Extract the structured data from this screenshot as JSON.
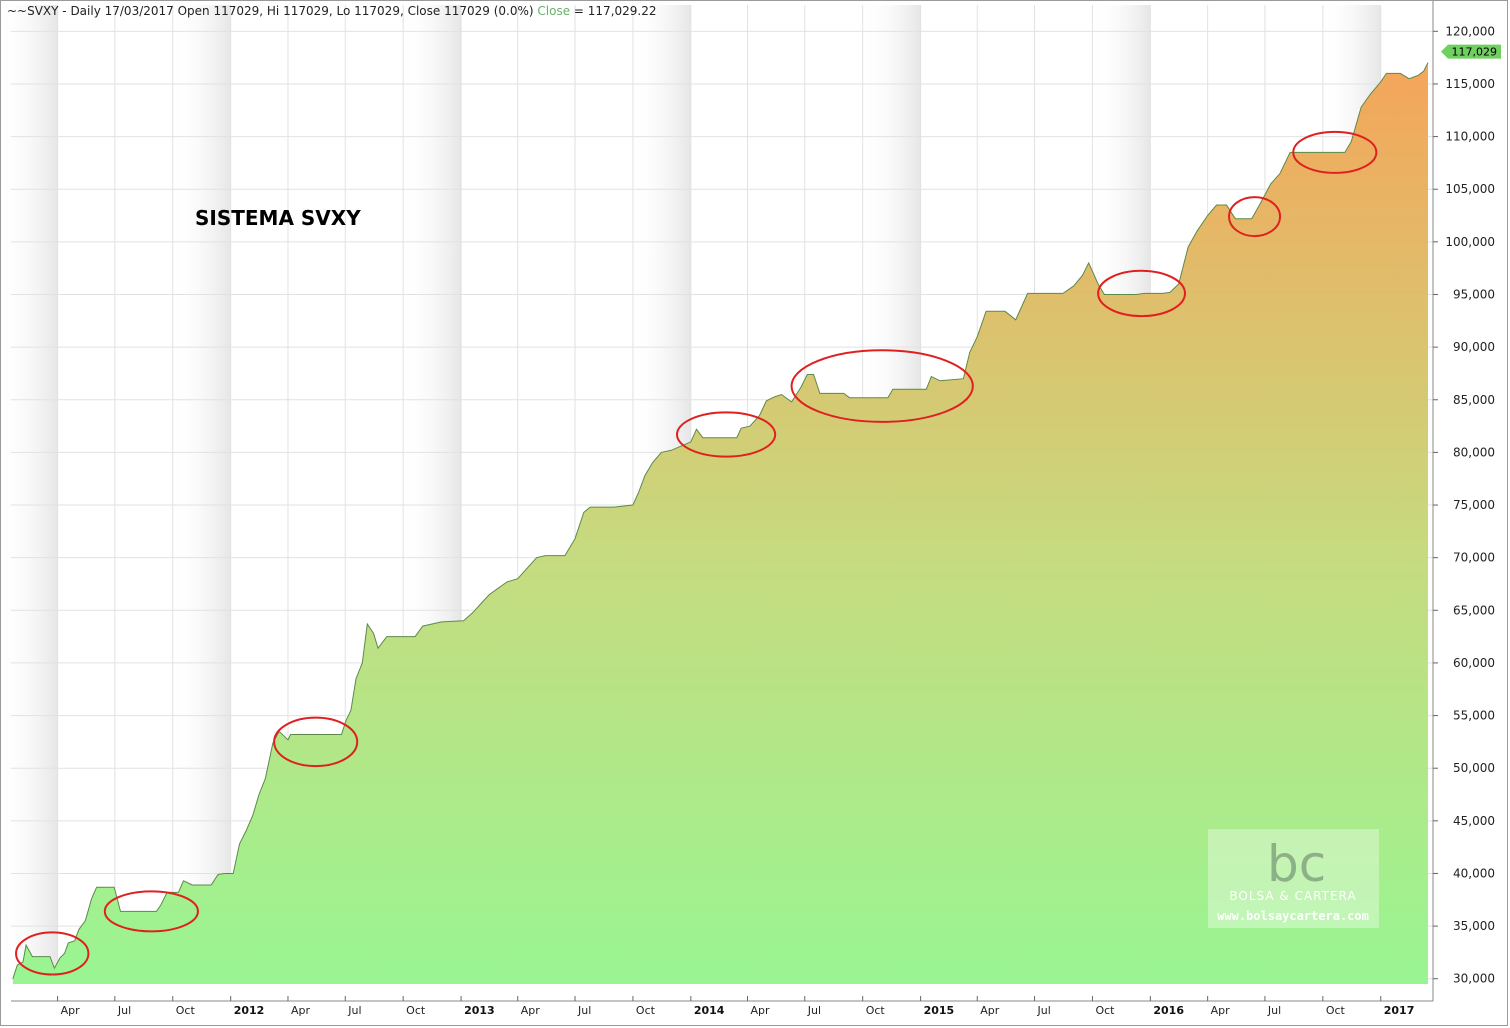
{
  "header": {
    "prefix": "~~SVXY - Daily 17/03/2017 Open 117029, Hi 117029, Lo 117029, Close 117029 (0.0%)",
    "close_label": "Close",
    "close_value": "= 117,029.22"
  },
  "last_value_tag": "117,029",
  "watermark": {
    "logo": "bc",
    "name": "BOLSA & CARTERA",
    "url": "www.bolsaycartera.com"
  },
  "colors": {
    "fill_top": "#f5a55a",
    "fill_mid": "#c5dc80",
    "fill_bottom": "#99f592",
    "line": "#5c8a4a",
    "ellipse": "#e02020",
    "tag_bg": "#6fcf5f",
    "shade": "#ececec"
  },
  "chart_data": {
    "type": "area",
    "title": "SISTEMA SVXY",
    "xlabel": "",
    "ylabel": "",
    "ylim": [
      29500,
      122500
    ],
    "xlim": [
      "2011-01-17",
      "2017-03-25"
    ],
    "y_scale_position": "right",
    "grid": true,
    "y_ticks": [
      30000,
      35000,
      40000,
      45000,
      50000,
      55000,
      60000,
      65000,
      70000,
      75000,
      80000,
      85000,
      90000,
      95000,
      100000,
      105000,
      110000,
      115000,
      120000
    ],
    "y_tick_labels": [
      "30,000",
      "35,000",
      "40,000",
      "45,000",
      "50,000",
      "55,000",
      "60,000",
      "65,000",
      "70,000",
      "75,000",
      "80,000",
      "85,000",
      "90,000",
      "95,000",
      "100,000",
      "105,000",
      "110,000",
      "115,000",
      "120,000"
    ],
    "x_ticks": [
      {
        "date": "2011-04-01",
        "label": "Apr",
        "year": false
      },
      {
        "date": "2011-07-01",
        "label": "Jul",
        "year": false
      },
      {
        "date": "2011-10-01",
        "label": "Oct",
        "year": false
      },
      {
        "date": "2012-01-01",
        "label": "2012",
        "year": true
      },
      {
        "date": "2012-04-01",
        "label": "Apr",
        "year": false
      },
      {
        "date": "2012-07-01",
        "label": "Jul",
        "year": false
      },
      {
        "date": "2012-10-01",
        "label": "Oct",
        "year": false
      },
      {
        "date": "2013-01-01",
        "label": "2013",
        "year": true
      },
      {
        "date": "2013-04-01",
        "label": "Apr",
        "year": false
      },
      {
        "date": "2013-07-01",
        "label": "Jul",
        "year": false
      },
      {
        "date": "2013-10-01",
        "label": "Oct",
        "year": false
      },
      {
        "date": "2014-01-01",
        "label": "2014",
        "year": true
      },
      {
        "date": "2014-04-01",
        "label": "Apr",
        "year": false
      },
      {
        "date": "2014-07-01",
        "label": "Jul",
        "year": false
      },
      {
        "date": "2014-10-01",
        "label": "Oct",
        "year": false
      },
      {
        "date": "2015-01-01",
        "label": "2015",
        "year": true
      },
      {
        "date": "2015-04-01",
        "label": "Apr",
        "year": false
      },
      {
        "date": "2015-07-01",
        "label": "Jul",
        "year": false
      },
      {
        "date": "2015-10-01",
        "label": "Oct",
        "year": false
      },
      {
        "date": "2016-01-01",
        "label": "2016",
        "year": true
      },
      {
        "date": "2016-04-01",
        "label": "Apr",
        "year": false
      },
      {
        "date": "2016-07-01",
        "label": "Jul",
        "year": false
      },
      {
        "date": "2016-10-01",
        "label": "Oct",
        "year": false
      },
      {
        "date": "2017-01-01",
        "label": "2017",
        "year": true
      }
    ],
    "series": [
      {
        "points": [
          [
            "2011-01-20",
            30000
          ],
          [
            "2011-01-27",
            31300
          ],
          [
            "2011-02-05",
            31600
          ],
          [
            "2011-02-10",
            33200
          ],
          [
            "2011-02-20",
            32100
          ],
          [
            "2011-03-20",
            32100
          ],
          [
            "2011-03-27",
            31000
          ],
          [
            "2011-04-05",
            32000
          ],
          [
            "2011-04-12",
            32400
          ],
          [
            "2011-04-18",
            33400
          ],
          [
            "2011-04-28",
            33600
          ],
          [
            "2011-05-05",
            34700
          ],
          [
            "2011-05-15",
            35500
          ],
          [
            "2011-05-25",
            37600
          ],
          [
            "2011-06-02",
            38700
          ],
          [
            "2011-06-30",
            38700
          ],
          [
            "2011-07-10",
            36400
          ],
          [
            "2011-09-05",
            36400
          ],
          [
            "2011-09-12",
            37000
          ],
          [
            "2011-09-22",
            38200
          ],
          [
            "2011-10-10",
            38200
          ],
          [
            "2011-10-18",
            39300
          ],
          [
            "2011-11-01",
            38900
          ],
          [
            "2011-12-01",
            38900
          ],
          [
            "2011-12-12",
            39900
          ],
          [
            "2011-12-22",
            40000
          ],
          [
            "2012-01-05",
            40000
          ],
          [
            "2012-01-15",
            42800
          ],
          [
            "2012-01-25",
            44000
          ],
          [
            "2012-02-05",
            45500
          ],
          [
            "2012-02-15",
            47500
          ],
          [
            "2012-02-25",
            49000
          ],
          [
            "2012-03-08",
            52400
          ],
          [
            "2012-03-18",
            53500
          ],
          [
            "2012-04-01",
            52700
          ],
          [
            "2012-04-05",
            53200
          ],
          [
            "2012-06-25",
            53200
          ],
          [
            "2012-07-02",
            54500
          ],
          [
            "2012-07-10",
            55500
          ],
          [
            "2012-07-18",
            58500
          ],
          [
            "2012-07-28",
            60000
          ],
          [
            "2012-08-05",
            63700
          ],
          [
            "2012-08-15",
            62800
          ],
          [
            "2012-08-22",
            61400
          ],
          [
            "2012-09-05",
            62500
          ],
          [
            "2012-10-01",
            62500
          ],
          [
            "2012-10-20",
            62500
          ],
          [
            "2012-11-01",
            63500
          ],
          [
            "2012-12-01",
            63900
          ],
          [
            "2013-01-05",
            64000
          ],
          [
            "2013-01-20",
            64800
          ],
          [
            "2013-02-01",
            65600
          ],
          [
            "2013-02-15",
            66500
          ],
          [
            "2013-03-01",
            67100
          ],
          [
            "2013-03-15",
            67700
          ],
          [
            "2013-04-01",
            68000
          ],
          [
            "2013-05-01",
            70000
          ],
          [
            "2013-05-15",
            70200
          ],
          [
            "2013-06-15",
            70200
          ],
          [
            "2013-07-01",
            71800
          ],
          [
            "2013-07-15",
            74300
          ],
          [
            "2013-07-25",
            74800
          ],
          [
            "2013-08-20",
            74800
          ],
          [
            "2013-09-01",
            74800
          ],
          [
            "2013-10-01",
            75000
          ],
          [
            "2013-10-10",
            76200
          ],
          [
            "2013-10-20",
            77800
          ],
          [
            "2013-11-01",
            79000
          ],
          [
            "2013-11-15",
            80000
          ],
          [
            "2013-12-01",
            80200
          ],
          [
            "2014-01-01",
            81000
          ],
          [
            "2014-01-10",
            82200
          ],
          [
            "2014-01-20",
            81400
          ],
          [
            "2014-03-15",
            81400
          ],
          [
            "2014-03-22",
            82300
          ],
          [
            "2014-04-05",
            82500
          ],
          [
            "2014-04-20",
            83500
          ],
          [
            "2014-05-01",
            84900
          ],
          [
            "2014-05-15",
            85300
          ],
          [
            "2014-05-25",
            85500
          ],
          [
            "2014-06-10",
            84800
          ],
          [
            "2014-06-25",
            86200
          ],
          [
            "2014-07-05",
            87400
          ],
          [
            "2014-07-15",
            87400
          ],
          [
            "2014-07-25",
            85600
          ],
          [
            "2014-09-01",
            85600
          ],
          [
            "2014-09-10",
            85200
          ],
          [
            "2014-11-10",
            85200
          ],
          [
            "2014-11-18",
            86000
          ],
          [
            "2014-12-30",
            86000
          ],
          [
            "2015-01-10",
            86000
          ],
          [
            "2015-01-18",
            87200
          ],
          [
            "2015-02-01",
            86800
          ],
          [
            "2015-03-10",
            87000
          ],
          [
            "2015-03-20",
            89500
          ],
          [
            "2015-04-01",
            91000
          ],
          [
            "2015-04-15",
            93400
          ],
          [
            "2015-05-15",
            93400
          ],
          [
            "2015-06-01",
            92600
          ],
          [
            "2015-06-20",
            95100
          ],
          [
            "2015-08-15",
            95100
          ],
          [
            "2015-09-01",
            95800
          ],
          [
            "2015-09-15",
            96800
          ],
          [
            "2015-09-25",
            98000
          ],
          [
            "2015-10-10",
            96000
          ],
          [
            "2015-10-20",
            95000
          ],
          [
            "2015-12-10",
            95000
          ],
          [
            "2015-12-22",
            95100
          ],
          [
            "2016-01-20",
            95100
          ],
          [
            "2016-02-01",
            95200
          ],
          [
            "2016-02-15",
            96000
          ],
          [
            "2016-03-01",
            99500
          ],
          [
            "2016-03-15",
            101000
          ],
          [
            "2016-04-01",
            102500
          ],
          [
            "2016-04-15",
            103500
          ],
          [
            "2016-05-01",
            103500
          ],
          [
            "2016-05-15",
            102200
          ],
          [
            "2016-06-10",
            102200
          ],
          [
            "2016-06-25",
            103800
          ],
          [
            "2016-07-10",
            105500
          ],
          [
            "2016-07-25",
            106500
          ],
          [
            "2016-08-10",
            108500
          ],
          [
            "2016-10-20",
            108500
          ],
          [
            "2016-11-05",
            108500
          ],
          [
            "2016-11-15",
            109500
          ],
          [
            "2016-12-01",
            112800
          ],
          [
            "2016-12-15",
            114000
          ],
          [
            "2017-01-01",
            115200
          ],
          [
            "2017-01-10",
            116000
          ],
          [
            "2017-02-01",
            116000
          ],
          [
            "2017-02-15",
            115500
          ],
          [
            "2017-03-01",
            115800
          ],
          [
            "2017-03-10",
            116200
          ],
          [
            "2017-03-17",
            117029
          ]
        ]
      }
    ],
    "annotations": [
      {
        "type": "ellipse",
        "x_range": [
          "2011-01-25",
          "2011-05-20"
        ],
        "y_center": 32400,
        "y_span": 4000
      },
      {
        "type": "ellipse",
        "x_range": [
          "2011-06-15",
          "2011-11-10"
        ],
        "y_center": 36400,
        "y_span": 3800
      },
      {
        "type": "ellipse",
        "x_range": [
          "2012-03-10",
          "2012-07-20"
        ],
        "y_center": 52500,
        "y_span": 4600
      },
      {
        "type": "ellipse",
        "x_range": [
          "2013-12-10",
          "2014-05-15"
        ],
        "y_center": 81700,
        "y_span": 4200
      },
      {
        "type": "ellipse",
        "x_range": [
          "2014-06-10",
          "2015-03-25"
        ],
        "y_center": 86300,
        "y_span": 6800
      },
      {
        "type": "ellipse",
        "x_range": [
          "2015-10-10",
          "2016-02-25"
        ],
        "y_center": 95100,
        "y_span": 4300
      },
      {
        "type": "ellipse",
        "x_range": [
          "2016-05-05",
          "2016-07-25"
        ],
        "y_center": 102400,
        "y_span": 3700
      },
      {
        "type": "ellipse",
        "x_range": [
          "2016-08-15",
          "2016-12-25"
        ],
        "y_center": 108500,
        "y_span": 3900
      }
    ]
  }
}
